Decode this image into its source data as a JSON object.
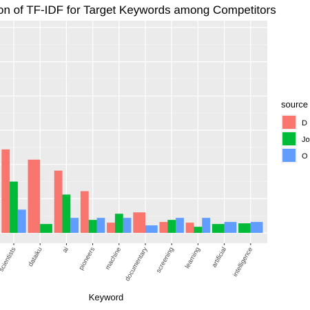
{
  "chart_data": {
    "type": "bar",
    "title": "on of TF-IDF for Target Keywords among Competitors",
    "xlabel": "Keyword",
    "ylabel": "",
    "categories": [
      "scientists",
      "dataiku",
      "ai",
      "pioneers",
      "machine",
      "documentary",
      "screening",
      "learning",
      "artificial",
      "intelligence"
    ],
    "series": [
      {
        "name": "D",
        "color": "#F8766D",
        "values": [
          0.122,
          0.107,
          0.091,
          0.061,
          0.015,
          0.03,
          0.016,
          0.015,
          null,
          null
        ]
      },
      {
        "name": "Jo",
        "color": "#00BA38",
        "values": [
          0.075,
          0.013,
          0.056,
          0.019,
          0.028,
          null,
          0.019,
          0.009,
          0.013,
          0.014
        ]
      },
      {
        "name": "O",
        "color": "#619CFF",
        "values": [
          0.034,
          null,
          0.022,
          0.022,
          0.022,
          0.011,
          0.022,
          0.022,
          0.016,
          0.016
        ]
      }
    ],
    "ylim": [
      -0.015,
      0.31
    ],
    "grid": true,
    "legend": {
      "title": "source",
      "position": "right"
    }
  }
}
